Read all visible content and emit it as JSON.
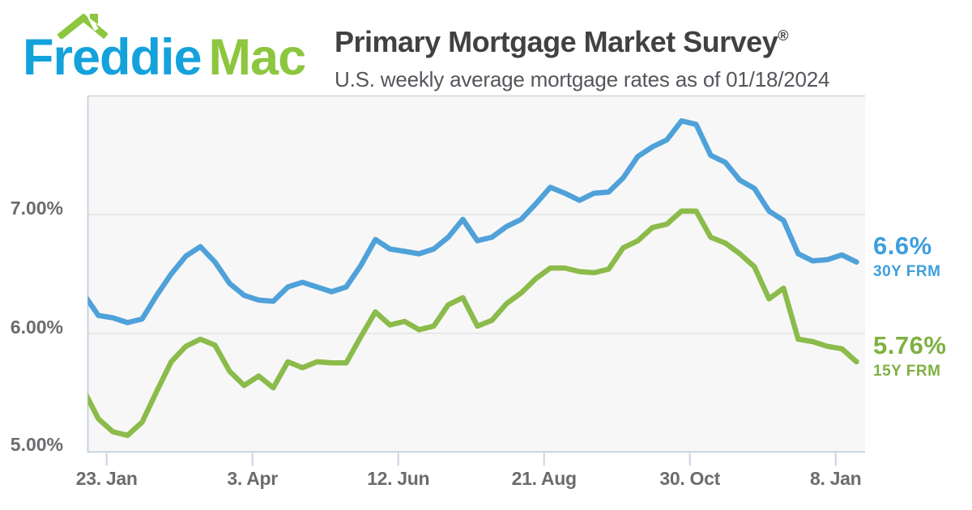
{
  "header": {
    "logo": {
      "word1": "Freddie",
      "word2": "Mac"
    },
    "title": "Primary Mortgage Market Survey",
    "registered_mark": "®",
    "subtitle": "U.S. weekly average mortgage rates as of 01/18/2024"
  },
  "colors": {
    "logo_blue": "#14A2DC",
    "logo_green": "#8DC63F",
    "line_30y": "#4FA1D9",
    "line_15y": "#8BBB4A",
    "label_30y": "#3E9EDC",
    "label_15y": "#7FB042",
    "axis_text": "#6B6C6F",
    "plot_bg": "#F7F7F7",
    "gridline": "#E3E3E3",
    "axis_line": "#C9D3E0",
    "top_border": "#DCDCDC"
  },
  "chart_data": {
    "type": "line",
    "title": "Primary Mortgage Market Survey",
    "subtitle": "U.S. weekly average mortgage rates as of 01/18/2024",
    "x_frequency": "weekly",
    "x_tick_labels": [
      "23. Jan",
      "3. Apr",
      "12. Jun",
      "21. Aug",
      "30. Oct",
      "8. Jan"
    ],
    "y_tick_labels": [
      "7.00%",
      "6.00%",
      "5.00%"
    ],
    "ylim": [
      5.0,
      8.0
    ],
    "gridline_values": [
      7.0,
      6.0
    ],
    "grid": "horizontal-only",
    "legend_position": "right-end-labels",
    "series": [
      {
        "name": "30Y FRM",
        "end_label": "6.6%",
        "color": "#4FA1D9",
        "label_color": "#3E9EDC",
        "values": [
          6.33,
          6.15,
          6.13,
          6.09,
          6.12,
          6.32,
          6.5,
          6.65,
          6.73,
          6.6,
          6.42,
          6.32,
          6.28,
          6.27,
          6.39,
          6.43,
          6.39,
          6.35,
          6.39,
          6.57,
          6.79,
          6.71,
          6.69,
          6.67,
          6.71,
          6.81,
          6.96,
          6.78,
          6.81,
          6.9,
          6.96,
          7.09,
          7.23,
          7.18,
          7.12,
          7.18,
          7.19,
          7.31,
          7.49,
          7.57,
          7.63,
          7.79,
          7.76,
          7.5,
          7.44,
          7.29,
          7.22,
          7.03,
          6.95,
          6.67,
          6.61,
          6.62,
          6.66,
          6.6
        ]
      },
      {
        "name": "15Y FRM",
        "end_label": "5.76%",
        "color": "#8BBB4A",
        "label_color": "#7FB042",
        "values": [
          5.52,
          5.28,
          5.17,
          5.14,
          5.25,
          5.51,
          5.76,
          5.89,
          5.95,
          5.9,
          5.68,
          5.56,
          5.64,
          5.54,
          5.76,
          5.71,
          5.76,
          5.75,
          5.75,
          5.97,
          6.18,
          6.07,
          6.1,
          6.03,
          6.06,
          6.24,
          6.3,
          6.06,
          6.11,
          6.25,
          6.34,
          6.46,
          6.55,
          6.55,
          6.52,
          6.51,
          6.54,
          6.72,
          6.78,
          6.89,
          6.92,
          7.03,
          7.03,
          6.81,
          6.76,
          6.67,
          6.56,
          6.29,
          6.38,
          5.95,
          5.93,
          5.89,
          5.87,
          5.76
        ]
      }
    ]
  }
}
